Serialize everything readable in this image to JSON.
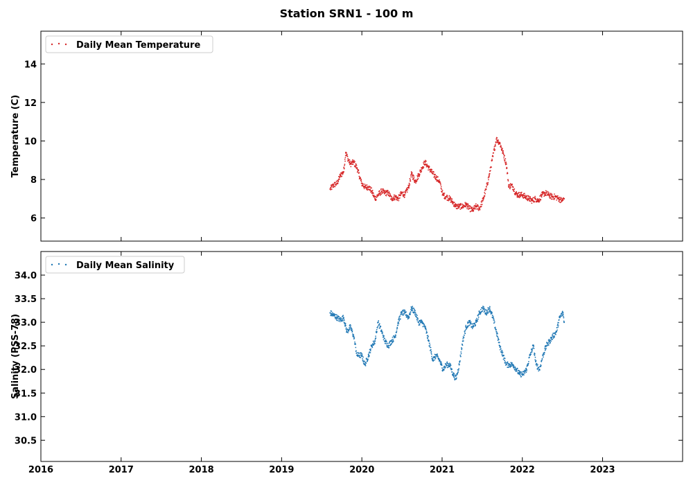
{
  "figure": {
    "title": "Station SRN1 - 100 m"
  },
  "chart_data": [
    {
      "type": "scatter",
      "title": "",
      "xlabel": "",
      "ylabel": "Temperature (C)",
      "xlim": [
        "2016-01-01",
        "2023-12-31"
      ],
      "ylim": [
        4.8,
        15.7
      ],
      "y_ticks": [
        6,
        8,
        10,
        12,
        14
      ],
      "x_ticks": [
        "2016",
        "2017",
        "2018",
        "2019",
        "2020",
        "2021",
        "2022",
        "2023"
      ],
      "grid": false,
      "legend": "top-left",
      "series": [
        {
          "name": "Daily Mean Temperature",
          "color": "#d62728",
          "x": [
            "2019-08-10",
            "2019-08-25",
            "2019-09-10",
            "2019-09-25",
            "2019-10-10",
            "2019-10-20",
            "2019-11-01",
            "2019-11-10",
            "2019-11-25",
            "2019-12-10",
            "2019-12-31",
            "2020-01-15",
            "2020-02-01",
            "2020-02-15",
            "2020-03-01",
            "2020-03-15",
            "2020-04-01",
            "2020-04-15",
            "2020-05-01",
            "2020-05-15",
            "2020-06-01",
            "2020-06-15",
            "2020-07-01",
            "2020-07-15",
            "2020-08-01",
            "2020-08-15",
            "2020-09-01",
            "2020-09-15",
            "2020-10-01",
            "2020-10-15",
            "2020-11-01",
            "2020-11-20",
            "2020-12-05",
            "2020-12-20",
            "2021-01-05",
            "2021-01-20",
            "2021-02-05",
            "2021-02-20",
            "2021-03-05",
            "2021-03-20",
            "2021-04-05",
            "2021-04-20",
            "2021-05-05",
            "2021-05-20",
            "2021-06-05",
            "2021-06-20",
            "2021-07-05",
            "2021-07-20",
            "2021-08-05",
            "2021-08-20",
            "2021-09-05",
            "2021-09-20",
            "2021-10-05",
            "2021-10-20",
            "2021-11-01",
            "2021-11-10",
            "2021-11-20",
            "2021-12-01",
            "2021-12-10",
            "2021-12-20",
            "2022-01-01",
            "2022-01-15",
            "2022-02-01",
            "2022-02-15",
            "2022-03-01",
            "2022-03-15",
            "2022-04-01",
            "2022-04-15",
            "2022-05-01",
            "2022-05-15",
            "2022-06-01",
            "2022-06-15",
            "2022-07-01",
            "2022-07-10"
          ],
          "y": [
            7.5,
            7.7,
            7.8,
            8.2,
            8.4,
            9.4,
            9.0,
            8.8,
            8.9,
            8.6,
            7.8,
            7.6,
            7.6,
            7.4,
            7.0,
            7.2,
            7.4,
            7.3,
            7.3,
            7.0,
            7.1,
            7.0,
            7.3,
            7.2,
            7.6,
            8.3,
            7.9,
            8.2,
            8.6,
            8.9,
            8.6,
            8.3,
            8.1,
            7.9,
            7.2,
            7.1,
            7.0,
            6.8,
            6.6,
            6.6,
            6.6,
            6.7,
            6.5,
            6.4,
            6.6,
            6.5,
            6.9,
            7.5,
            8.3,
            9.2,
            10.1,
            9.9,
            9.4,
            8.8,
            7.6,
            7.7,
            7.6,
            7.3,
            7.2,
            7.2,
            7.2,
            7.1,
            7.0,
            6.9,
            7.0,
            6.9,
            7.2,
            7.3,
            7.2,
            7.1,
            7.1,
            7.0,
            6.9,
            7.0
          ]
        }
      ]
    },
    {
      "type": "scatter",
      "title": "",
      "xlabel": "",
      "ylabel": "Salinity (PSS-78)",
      "xlim": [
        "2016-01-01",
        "2023-12-31"
      ],
      "ylim": [
        30.05,
        34.5
      ],
      "y_ticks": [
        30.5,
        31.0,
        31.5,
        32.0,
        32.5,
        33.0,
        33.5,
        34.0
      ],
      "x_ticks": [
        "2016",
        "2017",
        "2018",
        "2019",
        "2020",
        "2021",
        "2022",
        "2023"
      ],
      "grid": false,
      "legend": "top-left",
      "series": [
        {
          "name": "Daily Mean Salinity",
          "color": "#1f77b4",
          "x": [
            "2019-08-10",
            "2019-08-25",
            "2019-09-10",
            "2019-09-25",
            "2019-10-10",
            "2019-10-25",
            "2019-11-10",
            "2019-11-25",
            "2019-12-10",
            "2019-12-31",
            "2020-01-15",
            "2020-02-01",
            "2020-02-15",
            "2020-03-01",
            "2020-03-15",
            "2020-04-01",
            "2020-04-15",
            "2020-05-01",
            "2020-05-15",
            "2020-06-01",
            "2020-06-15",
            "2020-07-01",
            "2020-07-15",
            "2020-08-01",
            "2020-08-15",
            "2020-09-01",
            "2020-09-15",
            "2020-10-01",
            "2020-10-15",
            "2020-11-01",
            "2020-11-20",
            "2020-12-05",
            "2020-12-20",
            "2021-01-05",
            "2021-01-20",
            "2021-02-05",
            "2021-02-20",
            "2021-03-05",
            "2021-03-20",
            "2021-04-05",
            "2021-04-20",
            "2021-05-05",
            "2021-05-20",
            "2021-06-05",
            "2021-06-20",
            "2021-07-05",
            "2021-07-20",
            "2021-08-05",
            "2021-08-20",
            "2021-09-05",
            "2021-09-20",
            "2021-10-05",
            "2021-10-20",
            "2021-11-05",
            "2021-11-20",
            "2021-12-05",
            "2021-12-20",
            "2022-01-05",
            "2022-01-20",
            "2022-02-05",
            "2022-02-20",
            "2022-03-05",
            "2022-03-20",
            "2022-04-05",
            "2022-04-20",
            "2022-05-05",
            "2022-05-20",
            "2022-06-05",
            "2022-06-20",
            "2022-07-05",
            "2022-07-10"
          ],
          "y": [
            33.2,
            33.15,
            33.1,
            33.05,
            33.1,
            32.8,
            32.9,
            32.7,
            32.3,
            32.3,
            32.1,
            32.3,
            32.5,
            32.6,
            33.0,
            32.8,
            32.6,
            32.5,
            32.6,
            32.7,
            33.0,
            33.2,
            33.2,
            33.1,
            33.3,
            33.2,
            33.0,
            33.0,
            32.9,
            32.6,
            32.2,
            32.3,
            32.2,
            32.0,
            32.1,
            32.1,
            31.9,
            31.8,
            32.1,
            32.6,
            32.9,
            33.0,
            32.9,
            33.0,
            33.2,
            33.3,
            33.2,
            33.3,
            33.1,
            32.8,
            32.5,
            32.3,
            32.1,
            32.1,
            32.1,
            32.0,
            31.9,
            31.9,
            32.0,
            32.3,
            32.5,
            32.1,
            32.0,
            32.3,
            32.5,
            32.6,
            32.7,
            32.8,
            33.1,
            33.2,
            33.0
          ]
        }
      ]
    }
  ]
}
